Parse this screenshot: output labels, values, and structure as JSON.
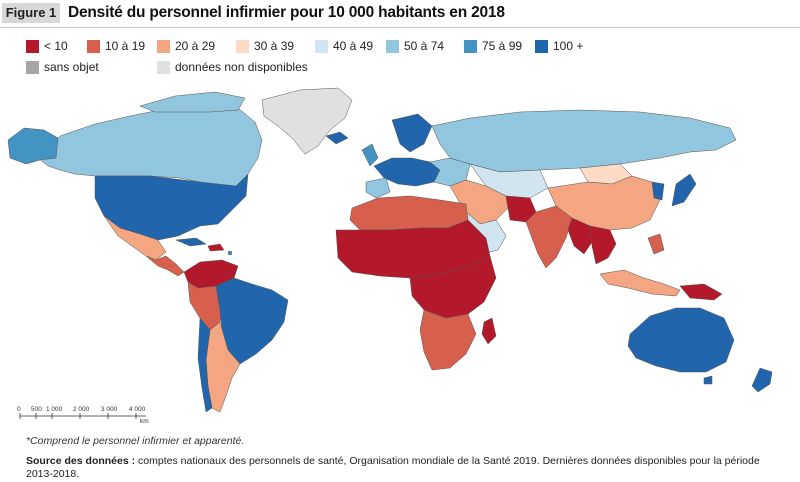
{
  "figure": {
    "label": "Figure 1",
    "title": "Densité du personnel infirmier pour 10 000 habitants en 2018"
  },
  "legend": {
    "items": [
      {
        "label": "< 10",
        "color": "#b3182b"
      },
      {
        "label": "10 à 19",
        "color": "#d6604d"
      },
      {
        "label": "20 à 29",
        "color": "#f4a582"
      },
      {
        "label": "30 à 39",
        "color": "#fddbc7"
      },
      {
        "label": "40 à 49",
        "color": "#d1e5f0"
      },
      {
        "label": "50 à 74",
        "color": "#92c5de"
      },
      {
        "label": "75 à 99",
        "color": "#4393c3"
      },
      {
        "label": "100 +",
        "color": "#2166ac"
      },
      {
        "label": "sans objet",
        "color": "#a6a6a6"
      },
      {
        "label": "données non disponibles",
        "color": "#e0e0e0"
      }
    ]
  },
  "scale_bar": {
    "ticks": [
      "0",
      "500",
      "1 000",
      "2 000",
      "3 000",
      "4 000"
    ],
    "unit": "km"
  },
  "note": "*Comprend le personnel infirmier et apparenté.",
  "source": {
    "label": "Source des données :",
    "text": "comptes nationaux des personnels de santé, Organisation mondiale de la Santé 2019. Dernières données disponibles pour la période 2013-2018."
  }
}
